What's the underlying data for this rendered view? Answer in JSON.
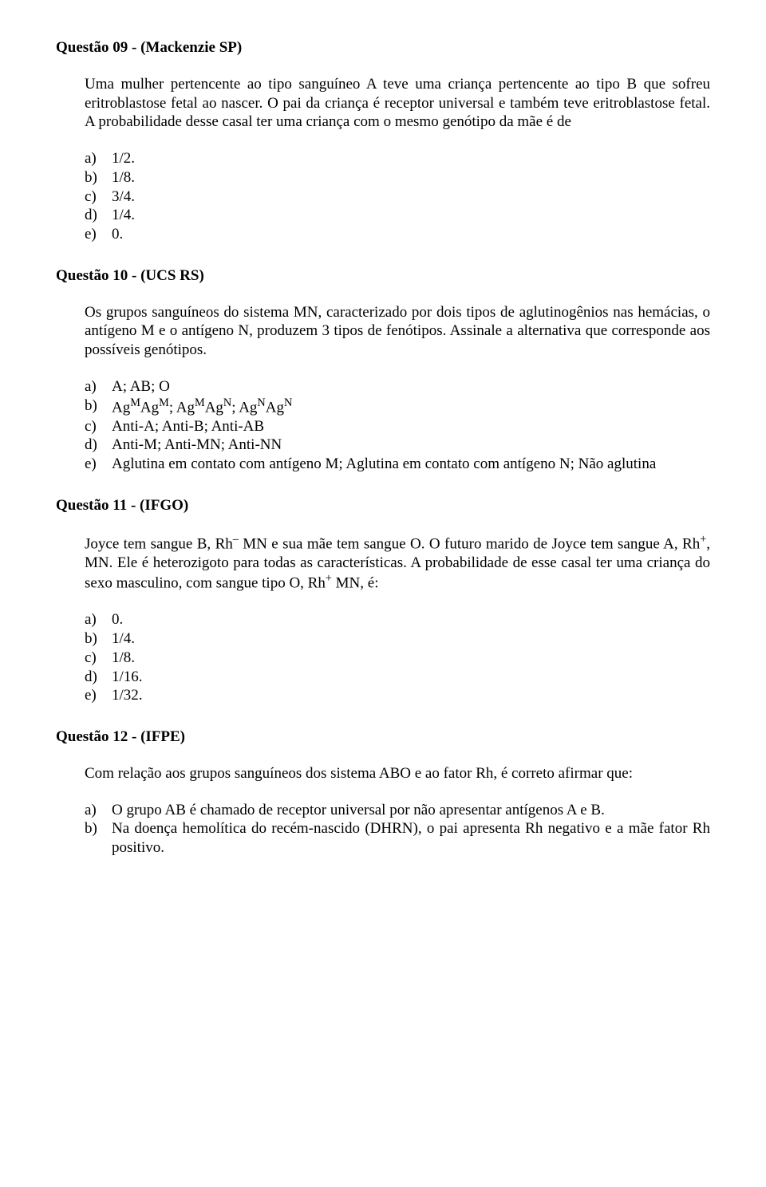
{
  "q09": {
    "title": "Questão 09 - (Mackenzie SP)",
    "body": "Uma mulher pertencente ao tipo sanguíneo A teve uma criança pertencente ao tipo B que sofreu eritroblastose fetal ao nascer. O pai da criança é receptor universal e também teve eritroblastose fetal. A probabilidade desse casal ter uma criança com o mesmo genótipo da mãe é de",
    "options": {
      "a": "1/2.",
      "b": "1/8.",
      "c": "3/4.",
      "d": "1/4.",
      "e": "0."
    }
  },
  "q10": {
    "title": "Questão 10 - (UCS RS)",
    "body": "Os grupos sanguíneos do sistema MN, caracterizado por dois tipos de aglutinogênios nas hemácias, o antígeno M e o antígeno N, produzem 3 tipos de fenótipos. Assinale a alternativa que corresponde aos possíveis genótipos.",
    "options": {
      "a": "A; AB; O",
      "c": "Anti-A; Anti-B; Anti-AB",
      "d": "Anti-M; Anti-MN; Anti-NN",
      "e": "Aglutina em contato com antígeno M; Aglutina em contato com antígeno N; Não aglutina"
    }
  },
  "q11": {
    "title": "Questão 11 - (IFGO)",
    "options": {
      "a": "0.",
      "b": "1/4.",
      "c": "1/8.",
      "d": "1/16.",
      "e": "1/32."
    }
  },
  "q12": {
    "title": "Questão 12 - (IFPE)",
    "body": "Com relação aos grupos sanguíneos dos sistema ABO e ao fator Rh, é correto afirmar que:",
    "options": {
      "a": "O grupo AB é chamado de receptor universal por não apresentar antígenos A e B.",
      "b": "Na doença hemolítica do recém-nascido (DHRN), o pai apresenta Rh negativo e a mãe fator Rh positivo."
    }
  },
  "labels": {
    "a": "a)",
    "b": "b)",
    "c": "c)",
    "d": "d)",
    "e": "e)"
  }
}
